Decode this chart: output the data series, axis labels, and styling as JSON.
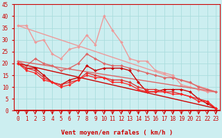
{
  "xlabel": "Vent moyen/en rafales ( km/h )",
  "xlim": [
    -0.5,
    23.5
  ],
  "ylim": [
    0,
    45
  ],
  "yticks": [
    0,
    5,
    10,
    15,
    20,
    25,
    30,
    35,
    40,
    45
  ],
  "xticks": [
    0,
    1,
    2,
    3,
    4,
    5,
    6,
    7,
    8,
    9,
    10,
    11,
    12,
    13,
    14,
    15,
    16,
    17,
    18,
    19,
    20,
    21,
    22,
    23
  ],
  "background_color": "#cceef0",
  "grid_color": "#aadddd",
  "series": [
    {
      "x": [
        0,
        1,
        2,
        3,
        4,
        5,
        6,
        7,
        8,
        9,
        10,
        11,
        12,
        13,
        14,
        15,
        16,
        17,
        18,
        19,
        20,
        21,
        22,
        23
      ],
      "y": [
        36,
        36,
        29,
        30,
        24,
        22,
        26,
        27,
        32,
        28,
        40,
        34,
        29,
        22,
        21,
        21,
        17,
        16,
        15,
        11,
        10,
        9,
        8,
        8
      ],
      "color": "#ee9999",
      "marker": "D",
      "markersize": 2.0,
      "linewidth": 1.0
    },
    {
      "x": [
        0,
        23
      ],
      "y": [
        36,
        8
      ],
      "color": "#ee9999",
      "marker": null,
      "linewidth": 1.0,
      "linestyle": "-"
    },
    {
      "x": [
        0,
        1,
        2,
        3,
        4,
        5,
        6,
        7,
        8,
        9,
        10,
        11,
        12,
        13,
        14,
        15,
        16,
        17,
        18,
        19,
        20,
        21,
        22,
        23
      ],
      "y": [
        21,
        19,
        22,
        20,
        19,
        17,
        18,
        20,
        24,
        22,
        20,
        19,
        19,
        18,
        17,
        16,
        15,
        14,
        14,
        13,
        12,
        10,
        9,
        8
      ],
      "color": "#dd6666",
      "marker": "D",
      "markersize": 2.0,
      "linewidth": 1.0
    },
    {
      "x": [
        0,
        23
      ],
      "y": [
        21,
        8
      ],
      "color": "#dd6666",
      "marker": null,
      "linewidth": 1.0,
      "linestyle": "-"
    },
    {
      "x": [
        0,
        1,
        2,
        3,
        4,
        5,
        6,
        7,
        8,
        9,
        10,
        11,
        12,
        13,
        14,
        15,
        16,
        17,
        18,
        19,
        20,
        21,
        22,
        23
      ],
      "y": [
        20,
        18,
        18,
        15,
        12,
        11,
        13,
        14,
        19,
        17,
        18,
        18,
        18,
        17,
        12,
        8,
        8,
        9,
        9,
        9,
        8,
        5,
        3,
        1
      ],
      "color": "#cc0000",
      "marker": "D",
      "markersize": 2.0,
      "linewidth": 1.0
    },
    {
      "x": [
        0,
        23
      ],
      "y": [
        20,
        1
      ],
      "color": "#cc0000",
      "marker": null,
      "linewidth": 1.0,
      "linestyle": "-"
    },
    {
      "x": [
        0,
        1,
        2,
        3,
        4,
        5,
        6,
        7,
        8,
        9,
        10,
        11,
        12,
        13,
        14,
        15,
        16,
        17,
        18,
        19,
        20,
        21,
        22,
        23
      ],
      "y": [
        20,
        18,
        17,
        14,
        12,
        11,
        12,
        13,
        16,
        15,
        14,
        13,
        13,
        12,
        10,
        9,
        9,
        8,
        8,
        7,
        6,
        5,
        4,
        1
      ],
      "color": "#dd3333",
      "marker": "D",
      "markersize": 2.0,
      "linewidth": 1.0
    },
    {
      "x": [
        0,
        1,
        2,
        3,
        4,
        5,
        6,
        7,
        8,
        9,
        10,
        11,
        12,
        13,
        14,
        15,
        16,
        17,
        18,
        19,
        20,
        21,
        22,
        23
      ],
      "y": [
        20,
        17,
        16,
        13,
        12,
        10,
        11,
        13,
        15,
        14,
        14,
        12,
        12,
        11,
        9,
        8,
        8,
        8,
        7,
        7,
        6,
        4,
        4,
        1
      ],
      "color": "#ff2222",
      "marker": "D",
      "markersize": 1.8,
      "linewidth": 0.9
    }
  ],
  "tick_color": "#cc0000",
  "label_color": "#cc0000",
  "xlabel_fontsize": 6.5,
  "tick_fontsize": 5.5,
  "arrow_color": "#cc0000"
}
